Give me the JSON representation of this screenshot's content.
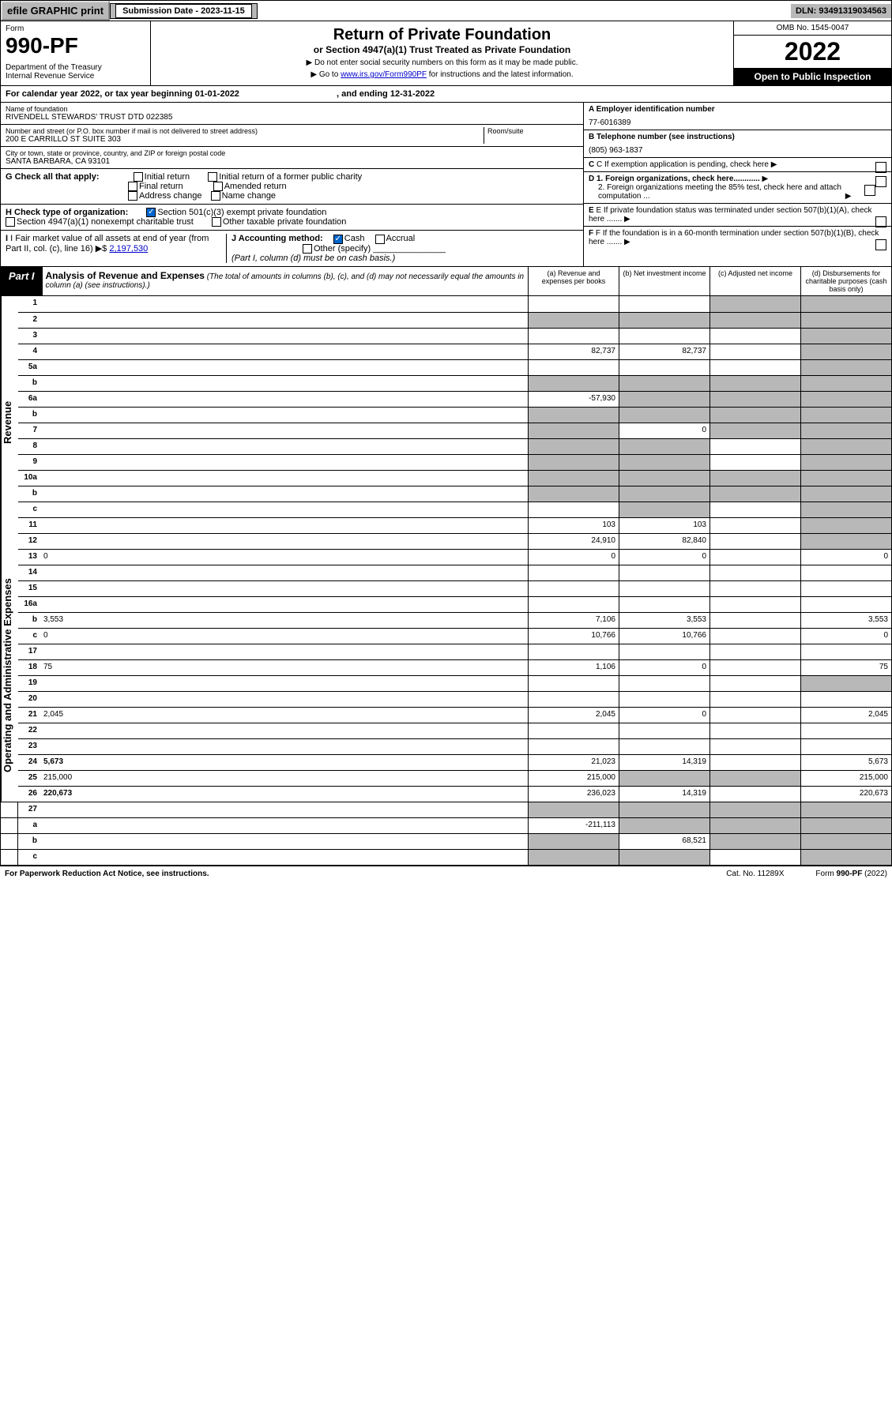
{
  "top": {
    "efile": "efile GRAPHIC print",
    "sub_label": "Submission Date - 2023-11-15",
    "dln": "DLN: 93491319034563"
  },
  "header": {
    "form": "Form",
    "num": "990-PF",
    "dept": "Department of the Treasury",
    "irs": "Internal Revenue Service",
    "title": "Return of Private Foundation",
    "subtitle": "or Section 4947(a)(1) Trust Treated as Private Foundation",
    "note1": "▶ Do not enter social security numbers on this form as it may be made public.",
    "note2_pre": "▶ Go to ",
    "note2_link": "www.irs.gov/Form990PF",
    "note2_post": " for instructions and the latest information.",
    "omb": "OMB No. 1545-0047",
    "year": "2022",
    "inspect": "Open to Public Inspection"
  },
  "cal": {
    "text_pre": "For calendar year 2022, or tax year beginning ",
    "begin": "01-01-2022",
    "text_mid": ", and ending ",
    "end": "12-31-2022"
  },
  "info": {
    "name_lbl": "Name of foundation",
    "name": "RIVENDELL STEWARDS' TRUST DTD 022385",
    "addr_lbl": "Number and street (or P.O. box number if mail is not delivered to street address)",
    "addr": "200 E CARRILLO ST SUITE 303",
    "room_lbl": "Room/suite",
    "city_lbl": "City or town, state or province, country, and ZIP or foreign postal code",
    "city": "SANTA BARBARA, CA  93101",
    "ein_lbl": "A Employer identification number",
    "ein": "77-6016389",
    "tel_lbl": "B Telephone number (see instructions)",
    "tel": "(805) 963-1837",
    "c": "C If exemption application is pending, check here",
    "d1": "D 1. Foreign organizations, check here............",
    "d2": "2. Foreign organizations meeting the 85% test, check here and attach computation ...",
    "e": "E If private foundation status was terminated under section 507(b)(1)(A), check here .......",
    "f": "F If the foundation is in a 60-month termination under section 507(b)(1)(B), check here .......",
    "g_lbl": "G Check all that apply:",
    "g_opts": [
      "Initial return",
      "Initial return of a former public charity",
      "Final return",
      "Amended return",
      "Address change",
      "Name change"
    ],
    "h_lbl": "H Check type of organization:",
    "h1": "Section 501(c)(3) exempt private foundation",
    "h2": "Section 4947(a)(1) nonexempt charitable trust",
    "h3": "Other taxable private foundation",
    "i_lbl": "I Fair market value of all assets at end of year (from Part II, col. (c), line 16)",
    "i_val": "2,197,530",
    "j_lbl": "J Accounting method:",
    "j1": "Cash",
    "j2": "Accrual",
    "j3": "Other (specify)",
    "j_note": "(Part I, column (d) must be on cash basis.)"
  },
  "part1": {
    "label": "Part I",
    "title": "Analysis of Revenue and Expenses",
    "title_note": "(The total of amounts in columns (b), (c), and (d) may not necessarily equal the amounts in column (a) (see instructions).)",
    "col_a": "(a) Revenue and expenses per books",
    "col_b": "(b) Net investment income",
    "col_c": "(c) Adjusted net income",
    "col_d": "(d) Disbursements for charitable purposes (cash basis only)"
  },
  "side_labels": {
    "rev": "Revenue",
    "exp": "Operating and Administrative Expenses"
  },
  "rows": [
    {
      "n": "1",
      "d": "",
      "a": "",
      "b": "",
      "c": "",
      "shade_c": true,
      "shade_d": true
    },
    {
      "n": "2",
      "d": "",
      "a": "",
      "b": "",
      "c": "",
      "shade_b": true,
      "shade_c": true,
      "shade_d": true,
      "shade_a": true
    },
    {
      "n": "3",
      "d": "",
      "a": "",
      "b": "",
      "c": "",
      "shade_d": true
    },
    {
      "n": "4",
      "d": "",
      "a": "82,737",
      "b": "82,737",
      "c": "",
      "shade_d": true
    },
    {
      "n": "5a",
      "d": "",
      "a": "",
      "b": "",
      "c": "",
      "shade_d": true
    },
    {
      "n": "b",
      "d": "",
      "a": "",
      "b": "",
      "c": "",
      "shade_a": true,
      "shade_b": true,
      "shade_c": true,
      "shade_d": true
    },
    {
      "n": "6a",
      "d": "",
      "a": "-57,930",
      "b": "",
      "c": "",
      "shade_b": true,
      "shade_c": true,
      "shade_d": true
    },
    {
      "n": "b",
      "d": "",
      "a": "",
      "b": "",
      "c": "",
      "shade_a": true,
      "shade_b": true,
      "shade_c": true,
      "shade_d": true
    },
    {
      "n": "7",
      "d": "",
      "a": "",
      "b": "0",
      "c": "",
      "shade_a": true,
      "shade_c": true,
      "shade_d": true
    },
    {
      "n": "8",
      "d": "",
      "a": "",
      "b": "",
      "c": "",
      "shade_a": true,
      "shade_b": true,
      "shade_d": true
    },
    {
      "n": "9",
      "d": "",
      "a": "",
      "b": "",
      "c": "",
      "shade_a": true,
      "shade_b": true,
      "shade_d": true
    },
    {
      "n": "10a",
      "d": "",
      "a": "",
      "b": "",
      "c": "",
      "shade_a": true,
      "shade_b": true,
      "shade_c": true,
      "shade_d": true
    },
    {
      "n": "b",
      "d": "",
      "a": "",
      "b": "",
      "c": "",
      "shade_a": true,
      "shade_b": true,
      "shade_c": true,
      "shade_d": true
    },
    {
      "n": "c",
      "d": "",
      "a": "",
      "b": "",
      "c": "",
      "shade_b": true,
      "shade_d": true
    },
    {
      "n": "11",
      "d": "",
      "a": "103",
      "b": "103",
      "c": "",
      "shade_d": true
    },
    {
      "n": "12",
      "d": "",
      "a": "24,910",
      "b": "82,840",
      "c": "",
      "bold": true,
      "shade_d": true
    },
    {
      "n": "13",
      "d": "0",
      "a": "0",
      "b": "0",
      "c": ""
    },
    {
      "n": "14",
      "d": "",
      "a": "",
      "b": "",
      "c": ""
    },
    {
      "n": "15",
      "d": "",
      "a": "",
      "b": "",
      "c": ""
    },
    {
      "n": "16a",
      "d": "",
      "a": "",
      "b": "",
      "c": ""
    },
    {
      "n": "b",
      "d": "3,553",
      "a": "7,106",
      "b": "3,553",
      "c": ""
    },
    {
      "n": "c",
      "d": "0",
      "a": "10,766",
      "b": "10,766",
      "c": ""
    },
    {
      "n": "17",
      "d": "",
      "a": "",
      "b": "",
      "c": ""
    },
    {
      "n": "18",
      "d": "75",
      "a": "1,106",
      "b": "0",
      "c": ""
    },
    {
      "n": "19",
      "d": "",
      "a": "",
      "b": "",
      "c": "",
      "shade_d": true
    },
    {
      "n": "20",
      "d": "",
      "a": "",
      "b": "",
      "c": ""
    },
    {
      "n": "21",
      "d": "2,045",
      "a": "2,045",
      "b": "0",
      "c": ""
    },
    {
      "n": "22",
      "d": "",
      "a": "",
      "b": "",
      "c": ""
    },
    {
      "n": "23",
      "d": "",
      "a": "",
      "b": "",
      "c": ""
    },
    {
      "n": "24",
      "d": "5,673",
      "a": "21,023",
      "b": "14,319",
      "c": "",
      "bold": true
    },
    {
      "n": "25",
      "d": "215,000",
      "a": "215,000",
      "b": "",
      "c": "",
      "shade_b": true,
      "shade_c": true
    },
    {
      "n": "26",
      "d": "220,673",
      "a": "236,023",
      "b": "14,319",
      "c": "",
      "bold": true
    },
    {
      "n": "27",
      "d": "",
      "a": "",
      "b": "",
      "c": "",
      "shade_a": true,
      "shade_b": true,
      "shade_c": true,
      "shade_d": true
    },
    {
      "n": "a",
      "d": "",
      "a": "-211,113",
      "b": "",
      "c": "",
      "bold": true,
      "shade_b": true,
      "shade_c": true,
      "shade_d": true
    },
    {
      "n": "b",
      "d": "",
      "a": "",
      "b": "68,521",
      "c": "",
      "bold": true,
      "shade_a": true,
      "shade_c": true,
      "shade_d": true
    },
    {
      "n": "c",
      "d": "",
      "a": "",
      "b": "",
      "c": "",
      "bold": true,
      "shade_a": true,
      "shade_b": true,
      "shade_d": true
    }
  ],
  "footer": {
    "left": "For Paperwork Reduction Act Notice, see instructions.",
    "mid": "Cat. No. 11289X",
    "right": "Form 990-PF (2022)"
  }
}
